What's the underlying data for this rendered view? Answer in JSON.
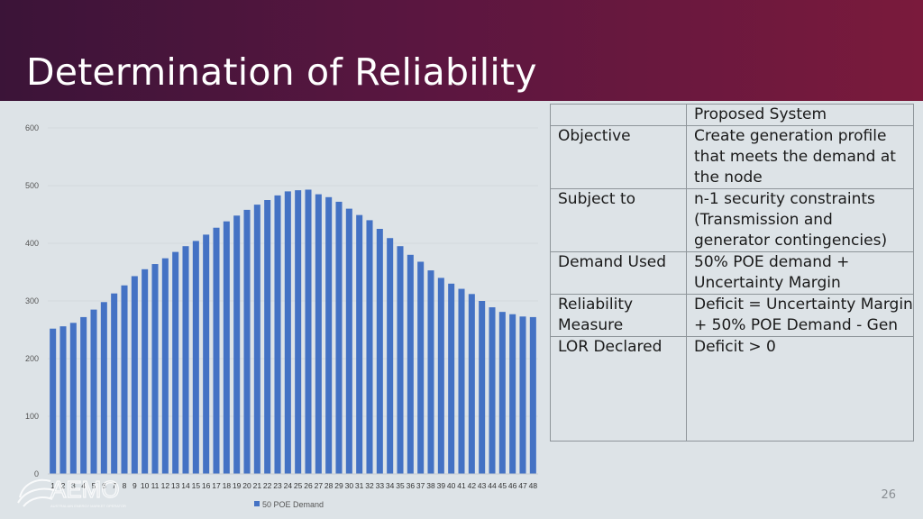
{
  "slide": {
    "title": "Determination of Reliability",
    "page_number": "26"
  },
  "logo": {
    "text": "AEMO",
    "subtitle": "AUSTRALIAN ENERGY MARKET OPERATOR"
  },
  "table": {
    "header": [
      "",
      "Proposed System"
    ],
    "rows": [
      {
        "label": "Objective",
        "value": "Create generation profile that meets the demand at the node"
      },
      {
        "label": "Subject to",
        "value": "n-1 security constraints (Transmission and generator contingencies)"
      },
      {
        "label": "Demand Used",
        "value": "50% POE demand + Uncertainty Margin"
      },
      {
        "label": "Reliability Measure",
        "value": "Deficit = Uncertainty Margin + 50% POE Demand  - Gen"
      },
      {
        "label": "LOR Declared",
        "value": "Deficit > 0"
      }
    ]
  },
  "colors": {
    "bar": "#4472c4",
    "header_start": "#3b1438",
    "header_end": "#7a1a3c"
  },
  "chart_data": {
    "type": "bar",
    "categories": [
      "1",
      "2",
      "3",
      "4",
      "5",
      "6",
      "7",
      "8",
      "9",
      "10",
      "11",
      "12",
      "13",
      "14",
      "15",
      "16",
      "17",
      "18",
      "19",
      "20",
      "21",
      "22",
      "23",
      "24",
      "25",
      "26",
      "27",
      "28",
      "29",
      "30",
      "31",
      "32",
      "33",
      "34",
      "35",
      "36",
      "37",
      "38",
      "39",
      "40",
      "41",
      "42",
      "43",
      "44",
      "45",
      "46",
      "47",
      "48"
    ],
    "series": [
      {
        "name": "50 POE Demand",
        "values": [
          252,
          256,
          262,
          272,
          285,
          298,
          313,
          327,
          343,
          355,
          364,
          374,
          385,
          395,
          404,
          415,
          427,
          438,
          448,
          458,
          467,
          475,
          483,
          490,
          492,
          493,
          485,
          480,
          472,
          460,
          449,
          440,
          425,
          409,
          395,
          380,
          368,
          353,
          340,
          330,
          321,
          312,
          300,
          289,
          281,
          277,
          273,
          272
        ]
      }
    ],
    "yticks": [
      0,
      100,
      200,
      300,
      400,
      500,
      600
    ],
    "ylim": [
      0,
      600
    ],
    "grid": true,
    "legend": "bottom-center"
  }
}
